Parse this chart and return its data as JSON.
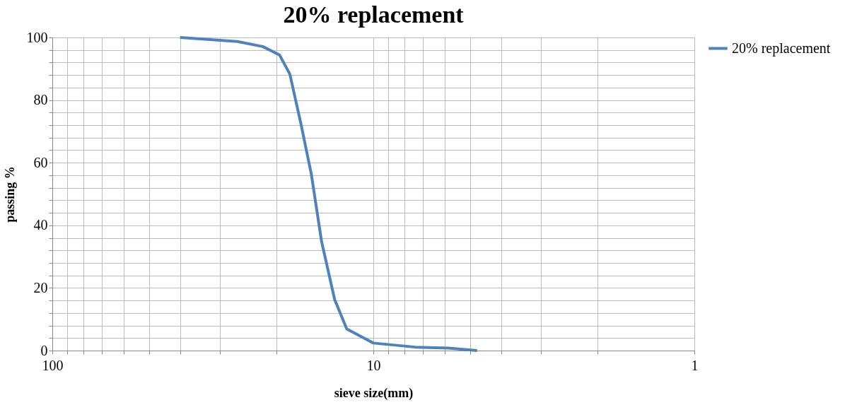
{
  "chart_data": {
    "type": "line",
    "title": "20% replacement",
    "xlabel": "sieve size(mm)",
    "ylabel": "passing %",
    "log": "x",
    "legend": "right",
    "grid": true,
    "marker": "none",
    "line_style": "solid",
    "x": [
      40,
      26.5,
      22.1,
      19.6,
      18.2,
      16.8,
      15.6,
      14.5,
      13.2,
      12.1,
      10,
      7.4,
      5.83,
      4.75
    ],
    "series": [
      {
        "name": "20% replacement",
        "color": "#4f81bd",
        "values": [
          100,
          98.7,
          97.1,
          94.4,
          88.3,
          72.3,
          56.3,
          34.9,
          16.3,
          6.9,
          2.4,
          1.1,
          0.8,
          0
        ]
      }
    ],
    "xlim": [
      100,
      1
    ],
    "xticks": [
      100,
      {
        "value": 90,
        "label": null
      },
      {
        "value": 80,
        "label": null
      },
      {
        "value": 70,
        "label": null
      },
      {
        "value": 60,
        "label": null
      },
      {
        "value": 50,
        "label": null
      },
      {
        "value": 40,
        "label": null
      },
      {
        "value": 30,
        "label": null
      },
      {
        "value": 20,
        "label": null
      },
      10,
      {
        "value": 9,
        "label": null
      },
      {
        "value": 8,
        "label": null
      },
      {
        "value": 7,
        "label": null
      },
      {
        "value": 6,
        "label": null
      },
      {
        "value": 5,
        "label": null
      },
      {
        "value": 4,
        "label": null
      },
      {
        "value": 3,
        "label": null
      },
      {
        "value": 2,
        "label": null
      },
      1
    ],
    "ylim": [
      0,
      100
    ],
    "yticks": [
      0,
      {
        "value": 4,
        "label": null
      },
      {
        "value": 8,
        "label": null
      },
      {
        "value": 12,
        "label": null
      },
      {
        "value": 16,
        "label": null
      },
      20,
      {
        "value": 24,
        "label": null
      },
      {
        "value": 28,
        "label": null
      },
      {
        "value": 32,
        "label": null
      },
      {
        "value": 36,
        "label": null
      },
      40,
      {
        "value": 44,
        "label": null
      },
      {
        "value": 48,
        "label": null
      },
      {
        "value": 52,
        "label": null
      },
      {
        "value": 56,
        "label": null
      },
      60,
      {
        "value": 64,
        "label": null
      },
      {
        "value": 68,
        "label": null
      },
      {
        "value": 72,
        "label": null
      },
      {
        "value": 76,
        "label": null
      },
      80,
      {
        "value": 84,
        "label": null
      },
      {
        "value": 88,
        "label": null
      },
      {
        "value": 92,
        "label": null
      },
      {
        "value": 96,
        "label": null
      },
      100
    ]
  }
}
